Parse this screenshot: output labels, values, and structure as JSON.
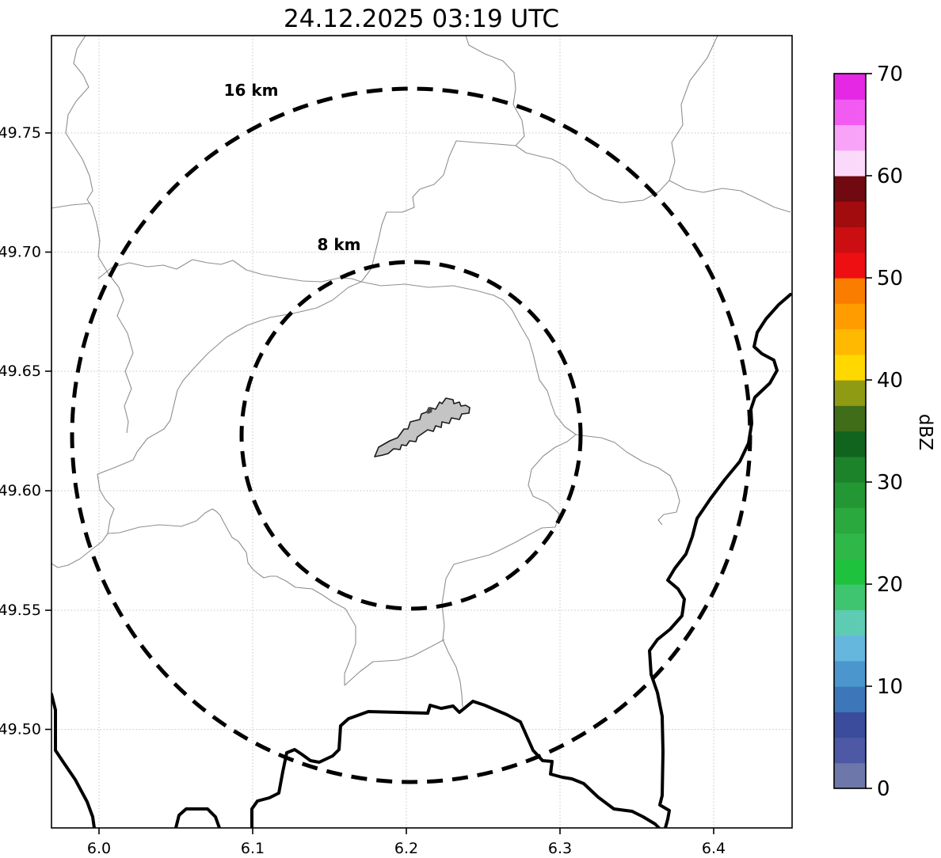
{
  "title": "24.12.2025 03:19 UTC",
  "axes": {
    "x_ticks": [
      "6.0",
      "6.1",
      "6.2",
      "6.3",
      "6.4"
    ],
    "y_ticks": [
      "49.75",
      "49.70",
      "49.65",
      "49.60",
      "49.55",
      "49.50"
    ]
  },
  "rings": {
    "outer_label": "16 km",
    "inner_label": "8 km"
  },
  "colorbar": {
    "label": "dBZ",
    "min": 0,
    "max": 70,
    "tick_values": [
      0,
      10,
      20,
      30,
      40,
      50,
      60,
      70
    ],
    "segment_colors_bottom_to_top": [
      "#6e77a9",
      "#4d59a4",
      "#3a4c9b",
      "#3d77ba",
      "#4b97cd",
      "#66b7de",
      "#5ecbb3",
      "#3fc46f",
      "#1ec23c",
      "#2fb747",
      "#2aa93e",
      "#249735",
      "#1c832a",
      "#11641d",
      "#3f6d18",
      "#8f9b13",
      "#ffd800",
      "#ffb900",
      "#ff9c00",
      "#fb7d00",
      "#ed0f12",
      "#ca0e12",
      "#a30c0e",
      "#700a10",
      "#fbd9fb",
      "#f8a2f8",
      "#f25bf2",
      "#e428e4"
    ]
  },
  "colors": {
    "ring_line": "#000000",
    "country_border": "#000000",
    "admin_boundary": "#8f8f8f",
    "city_fill": "#c4c4c4",
    "grid": "#c4c4c4",
    "background": "#ffffff"
  },
  "chart_data": {
    "type": "map",
    "title": "24.12.2025 03:19 UTC",
    "x_axis": {
      "ticks": [
        6.0,
        6.1,
        6.2,
        6.3,
        6.4
      ],
      "range": [
        5.969,
        6.454
      ]
    },
    "y_axis": {
      "ticks": [
        49.5,
        49.55,
        49.6,
        49.65,
        49.7,
        49.75
      ],
      "range": [
        49.459,
        49.791
      ]
    },
    "range_rings": [
      {
        "radius_km": 8,
        "label": "8 km"
      },
      {
        "radius_km": 16,
        "label": "16 km"
      }
    ],
    "ring_center": {
      "lon": 6.2,
      "lat": 49.62
    },
    "colorbar": {
      "label": "dBZ",
      "range": [
        0,
        70
      ],
      "ticks": [
        0,
        10,
        20,
        30,
        40,
        50,
        60,
        70
      ],
      "segment_step_dbz": 2.5
    },
    "reflectivity_echoes": []
  }
}
